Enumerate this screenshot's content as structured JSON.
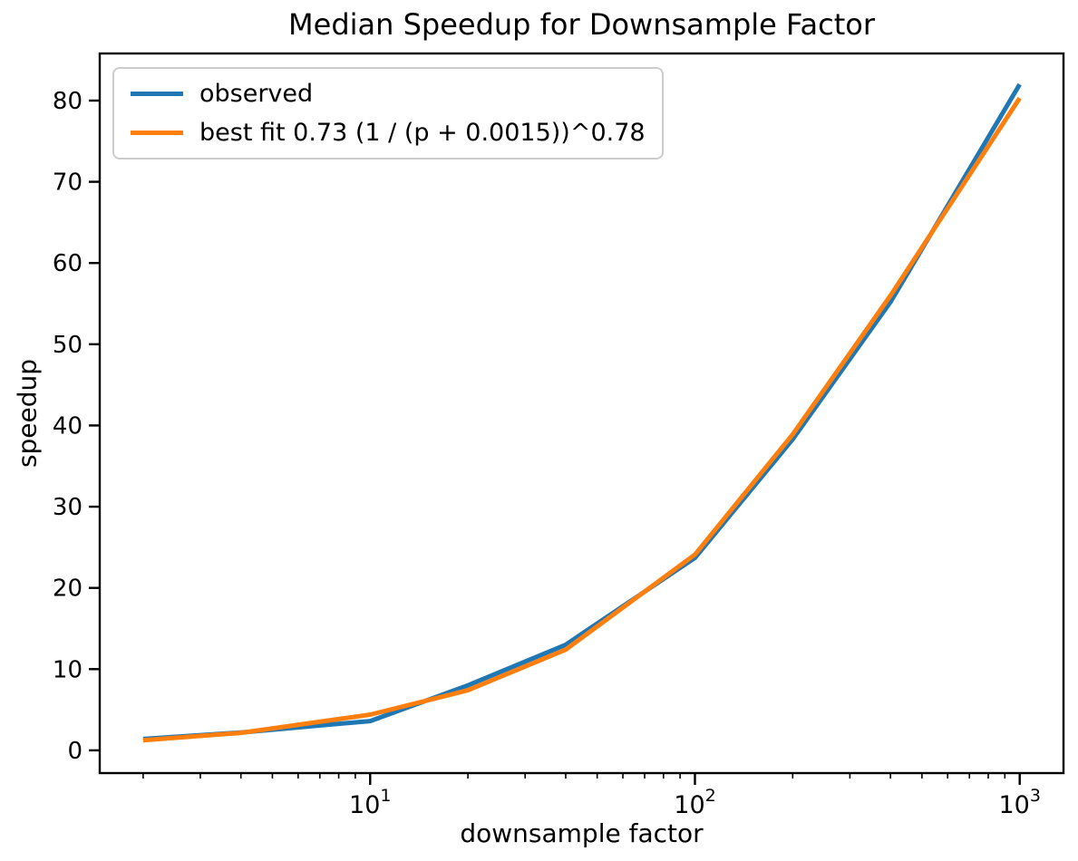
{
  "chart_data": {
    "type": "line",
    "title": "Median Speedup for Downsample Factor",
    "xlabel": "downsample factor",
    "ylabel": "speedup",
    "x_scale": "log",
    "xlim": [
      1.47,
      1364
    ],
    "ylim": [
      -2.8,
      85.8
    ],
    "grid": false,
    "legend_position": "upper left",
    "x": [
      2,
      4,
      10,
      20,
      40,
      100,
      200,
      400,
      1000
    ],
    "series": [
      {
        "name": "observed",
        "color": "#1f77b4",
        "values": [
          1.4,
          2.2,
          3.6,
          8.0,
          13.0,
          23.7,
          38.3,
          55.2,
          82.0
        ]
      },
      {
        "name": "best fit 0.73 (1 / (p + 0.0015))^0.78",
        "color": "#ff7f0e",
        "values": [
          1.25,
          2.15,
          4.4,
          7.4,
          12.4,
          24.1,
          38.9,
          56.0,
          80.3
        ]
      }
    ],
    "x_major_ticks": [
      {
        "value": 10,
        "base": "10",
        "exponent": "1"
      },
      {
        "value": 100,
        "base": "10",
        "exponent": "2"
      },
      {
        "value": 1000,
        "base": "10",
        "exponent": "3"
      }
    ],
    "y_ticks": [
      0,
      10,
      20,
      30,
      40,
      50,
      60,
      70,
      80
    ],
    "colors": {
      "text": "#000000",
      "spine": "#000000",
      "background": "#ffffff",
      "legend_border": "#cccccc"
    }
  }
}
